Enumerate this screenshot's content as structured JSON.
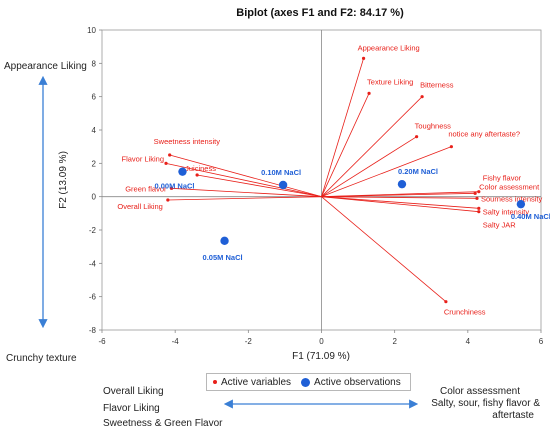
{
  "chart_data": {
    "type": "scatter",
    "title": "Biplot (axes F1 and F2: 84.17 %)",
    "xlabel": "F1 (71.09 %)",
    "ylabel": "F2 (13.09 %)",
    "xlim": [
      -6,
      6
    ],
    "ylim": [
      -8,
      10
    ],
    "xticks": [
      -6,
      -4,
      -2,
      0,
      2,
      4,
      6
    ],
    "yticks": [
      -8,
      -6,
      -4,
      -2,
      0,
      2,
      4,
      6,
      8,
      10
    ],
    "grid": false,
    "legend_position": "bottom",
    "series": [
      {
        "name": "Active variables",
        "style": "vectors",
        "color": "#e8201a",
        "points": [
          {
            "label": "Appearance Liking",
            "x": 1.15,
            "y": 8.3
          },
          {
            "label": "Texture Liking",
            "x": 1.3,
            "y": 6.2
          },
          {
            "label": "Bitterness",
            "x": 2.75,
            "y": 6.0
          },
          {
            "label": "Toughness",
            "x": 2.6,
            "y": 3.6
          },
          {
            "label": "notice any aftertaste?",
            "x": 3.55,
            "y": 3.0
          },
          {
            "label": "Fishy flavor",
            "x": 4.3,
            "y": 0.3
          },
          {
            "label": "Color assessment",
            "x": 4.2,
            "y": 0.2
          },
          {
            "label": "Sourness intensity",
            "x": 4.25,
            "y": -0.1
          },
          {
            "label": "Salty intensity",
            "x": 4.3,
            "y": -0.7
          },
          {
            "label": "Salty JAR",
            "x": 4.3,
            "y": -0.9
          },
          {
            "label": "Crunchiness",
            "x": 3.4,
            "y": -6.3
          },
          {
            "label": "Sweetness intensity",
            "x": -4.15,
            "y": 2.5
          },
          {
            "label": "Flavor Liking",
            "x": -4.25,
            "y": 2.0
          },
          {
            "label": "Juiciness",
            "x": -3.4,
            "y": 1.3
          },
          {
            "label": "Green flavor",
            "x": -4.1,
            "y": 0.5
          },
          {
            "label": "Overall Liking",
            "x": -4.2,
            "y": -0.2
          }
        ]
      },
      {
        "name": "Active observations",
        "style": "markers",
        "color": "#1f5fd6",
        "points": [
          {
            "label": "0.00M NaCl",
            "x": -3.8,
            "y": 1.5
          },
          {
            "label": "0.05M NaCl",
            "x": -2.65,
            "y": -2.65
          },
          {
            "label": "0.10M NaCl",
            "x": -1.05,
            "y": 0.7
          },
          {
            "label": "0.20M NaCl",
            "x": 2.2,
            "y": 0.75
          },
          {
            "label": "0.40M NaCl",
            "x": 5.45,
            "y": -0.45
          }
        ]
      }
    ]
  },
  "annotations": {
    "appearance_liking": "Appearance Liking",
    "crunchy_texture": "Crunchy texture",
    "left_group": [
      "Overall  Liking",
      "Flavor Liking",
      "Sweetness  & Green Flavor"
    ],
    "right_group": [
      "Color assessment",
      "Salty, sour, fishy flavor &",
      "aftertaste"
    ],
    "arrow_color": "#3a7fd5"
  }
}
